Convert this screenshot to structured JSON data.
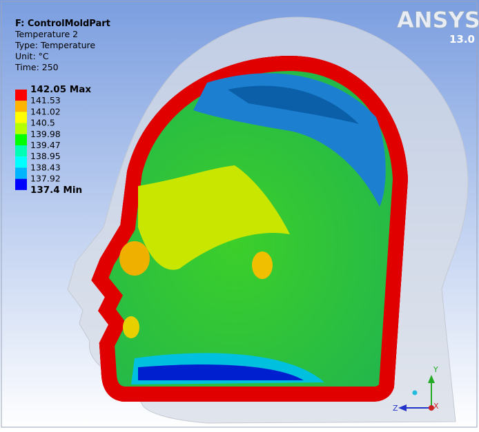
{
  "header": {
    "title": "F: ControlMoldPart",
    "lines": [
      "Temperature 2",
      "Type: Temperature",
      "Unit: °C",
      "Time: 250"
    ]
  },
  "legend": {
    "labels": [
      "142.05 Max",
      "141.53",
      "141.02",
      "140.5",
      "139.98",
      "139.47",
      "138.95",
      "138.43",
      "137.92",
      "137.4 Min"
    ],
    "bands": [
      "#ff0000",
      "#ffb400",
      "#ffff00",
      "#b4ff00",
      "#00ff00",
      "#00ffb4",
      "#00ffff",
      "#00b4ff",
      "#0000ff"
    ]
  },
  "logo": {
    "brand": "ANSYS",
    "version": "13.0"
  },
  "triad": {
    "y": "Y",
    "z": "Z",
    "x": "X"
  }
}
